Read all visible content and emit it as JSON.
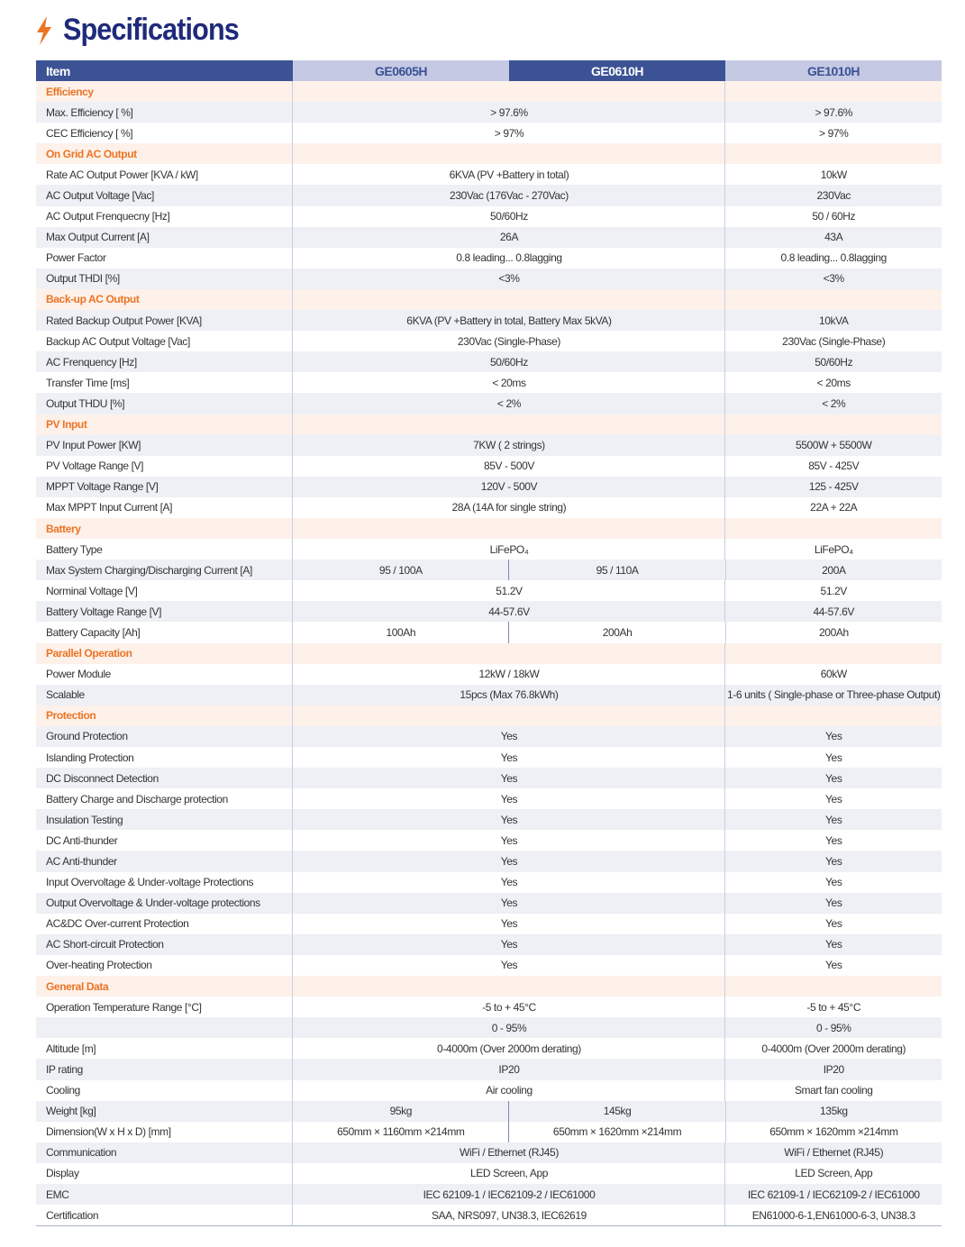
{
  "title": "Specifications",
  "colors": {
    "title": "#1f2a7a",
    "accent": "#ec7424",
    "header": "#3b5294",
    "header_light": "#c5c9e3"
  },
  "header": {
    "item": "Item",
    "models": [
      "GE0605H",
      "GE0610H",
      "GE1010H"
    ]
  },
  "rows": [
    {
      "section": "Efficiency"
    },
    {
      "label": "Max.  Efficiency [ %]",
      "values": [
        "> 97.6%",
        "> 97.6%"
      ]
    },
    {
      "label": "CEC Efficiency [ %]",
      "values": [
        "> 97%",
        "> 97%"
      ]
    },
    {
      "section": "On Grid AC Output"
    },
    {
      "label": "Rate AC Output Power [KVA / kW]",
      "values": [
        "6KVA (PV +Battery in total)",
        "10kW"
      ]
    },
    {
      "label": "AC Output Voltage [Vac]",
      "values": [
        "230Vac (176Vac - 270Vac)",
        "230Vac"
      ]
    },
    {
      "label": "AC Output Frenquecny [Hz]",
      "values": [
        "50/60Hz",
        "50 / 60Hz"
      ]
    },
    {
      "label": "Max Output Current [A]",
      "values": [
        "26A",
        "43A"
      ]
    },
    {
      "label": "Power Factor",
      "values": [
        "0.8 leading... 0.8lagging",
        "0.8 leading... 0.8lagging"
      ]
    },
    {
      "label": "Output THDI [%]",
      "values": [
        "<3%",
        "<3%"
      ]
    },
    {
      "section": "Back-up AC Output"
    },
    {
      "label": "Rated Backup Output Power [KVA]",
      "values": [
        "6KVA (PV +Battery in total, Battery Max 5kVA)",
        "10kVA"
      ]
    },
    {
      "label": "Backup AC Output Voltage [Vac]",
      "values": [
        "230Vac (Single-Phase)",
        "230Vac (Single-Phase)"
      ]
    },
    {
      "label": "AC Frenquency [Hz]",
      "values": [
        "50/60Hz",
        "50/60Hz"
      ]
    },
    {
      "label": "Transfer Time [ms]",
      "values": [
        "< 20ms",
        "< 20ms"
      ]
    },
    {
      "label": "Output THDU [%]",
      "values": [
        "< 2%",
        "< 2%"
      ]
    },
    {
      "section": "PV Input"
    },
    {
      "label": "PV Input Power [KW]",
      "values": [
        "7KW ( 2 strings)",
        "5500W + 5500W"
      ]
    },
    {
      "label": "PV Voltage Range [V]",
      "values": [
        "85V - 500V",
        "85V - 425V"
      ]
    },
    {
      "label": "MPPT Voltage Range [V]",
      "values": [
        "120V - 500V",
        "125 - 425V"
      ]
    },
    {
      "label": "Max MPPT Input Current [A]",
      "values": [
        "28A (14A  for single string)",
        "22A + 22A"
      ]
    },
    {
      "section": "Battery"
    },
    {
      "label": "Battery Type",
      "values": [
        "LiFePO₄",
        "LiFePO₄"
      ]
    },
    {
      "label": "Max System Charging/Discharging Current [A]",
      "values": [
        "95 / 100A",
        "95 / 110A",
        "200A"
      ]
    },
    {
      "label": "Norminal Voltage [V]",
      "values": [
        "51.2V",
        "51.2V"
      ]
    },
    {
      "label": "Battery Voltage Range [V]",
      "values": [
        "44-57.6V",
        "44-57.6V"
      ]
    },
    {
      "label": "Battery Capacity [Ah]",
      "values": [
        "100Ah",
        "200Ah",
        "200Ah"
      ]
    },
    {
      "section": "Parallel Operation"
    },
    {
      "label": "Power Module",
      "values": [
        "12kW / 18kW",
        "60kW"
      ]
    },
    {
      "label": "Scalable",
      "values": [
        "15pcs (Max 76.8kWh)",
        "1-6 units ( Single-phase or Three-phase Output)"
      ]
    },
    {
      "section": "Protection"
    },
    {
      "label": "Ground Protection",
      "values": [
        "Yes",
        "Yes"
      ]
    },
    {
      "label": "Islanding Protection",
      "values": [
        "Yes",
        "Yes"
      ]
    },
    {
      "label": "DC Disconnect Detection",
      "values": [
        "Yes",
        "Yes"
      ]
    },
    {
      "label": "Battery Charge and Discharge protection",
      "values": [
        "Yes",
        "Yes"
      ]
    },
    {
      "label": "Insulation Testing",
      "values": [
        "Yes",
        "Yes"
      ]
    },
    {
      "label": "DC Anti-thunder",
      "values": [
        "Yes",
        "Yes"
      ]
    },
    {
      "label": "AC Anti-thunder",
      "values": [
        "Yes",
        "Yes"
      ]
    },
    {
      "label": "Input Overvoltage & Under-voltage Protections",
      "values": [
        "Yes",
        "Yes"
      ]
    },
    {
      "label": "Output Overvoltage & Under-voltage protections",
      "values": [
        "Yes",
        "Yes"
      ]
    },
    {
      "label": "AC&DC Over-current Protection",
      "values": [
        "Yes",
        "Yes"
      ]
    },
    {
      "label": "AC Short-circuit Protection",
      "values": [
        "Yes",
        "Yes"
      ]
    },
    {
      "label": "Over-heating Protection",
      "values": [
        "Yes",
        "Yes"
      ]
    },
    {
      "section": "General Data"
    },
    {
      "label": "Operation Temperature Range [°C]",
      "values": [
        "-5 to + 45°C",
        "-5 to + 45°C"
      ]
    },
    {
      "label": "",
      "values": [
        "0 - 95%",
        "0 - 95%"
      ]
    },
    {
      "label": "Altitude [m]",
      "values": [
        "0-4000m (Over 2000m derating)",
        "0-4000m (Over 2000m derating)"
      ]
    },
    {
      "label": "IP rating",
      "values": [
        "IP20",
        "IP20"
      ]
    },
    {
      "label": "Cooling",
      "values": [
        "Air cooling",
        "Smart fan cooling"
      ]
    },
    {
      "label": "Weight [kg]",
      "values": [
        "95kg",
        "145kg",
        "135kg"
      ]
    },
    {
      "label": "Dimension(W x H x D) [mm]",
      "values": [
        "650mm × 1160mm ×214mm",
        "650mm × 1620mm ×214mm",
        "650mm × 1620mm ×214mm"
      ]
    },
    {
      "label": "Communication",
      "values": [
        "WiFi / Ethernet (RJ45)",
        "WiFi / Ethernet (RJ45)"
      ]
    },
    {
      "label": "Display",
      "values": [
        "LED Screen, App",
        "LED Screen, App"
      ]
    },
    {
      "label": "EMC",
      "values": [
        "IEC 62109-1 / IEC62109-2 / IEC61000",
        "IEC 62109-1 / IEC62109-2 / IEC61000"
      ]
    },
    {
      "label": "Certification",
      "values": [
        "SAA, NRS097, UN38.3, IEC62619",
        "EN61000-6-1,EN61000-6-3, UN38.3"
      ]
    }
  ]
}
